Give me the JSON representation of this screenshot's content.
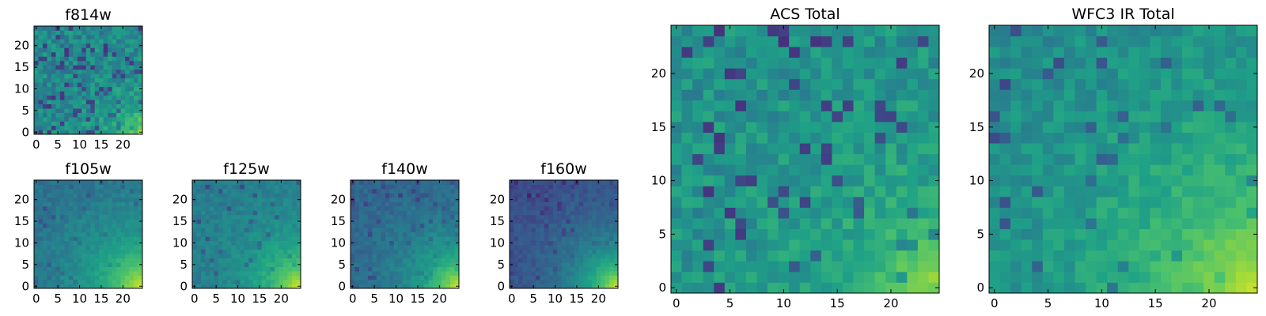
{
  "figure": {
    "background": "#ffffff"
  },
  "colormap": {
    "name": "viridis",
    "stops": [
      "#440154",
      "#46327e",
      "#365c8d",
      "#277f8e",
      "#1fa187",
      "#4ac16d",
      "#a0da39",
      "#fde725"
    ]
  },
  "chart_data": [
    {
      "type": "heatmap",
      "id": "f814w",
      "title": "f814w",
      "grid": [
        25,
        25
      ],
      "xlim": [
        -0.5,
        24.5
      ],
      "ylim": [
        -0.5,
        24.5
      ],
      "xticks": [
        0,
        5,
        10,
        15,
        20
      ],
      "yticks": [
        0,
        5,
        10,
        15,
        20
      ],
      "xtick_labels": [
        "0",
        "5",
        "10",
        "15",
        "20"
      ],
      "ytick_labels": [
        "0",
        "5",
        "10",
        "15",
        "20"
      ],
      "base_level": 0.46,
      "noise": 0.12,
      "dark_pixels": 0.1,
      "dark_level": 0.12,
      "gradient": {
        "level": 0.02,
        "bright": 1.0,
        "corner": [
          24,
          0
        ],
        "scale": 5.5,
        "peak": 0.75
      }
    },
    {
      "type": "heatmap",
      "id": "f105w",
      "title": "f105w",
      "grid": [
        25,
        25
      ],
      "xlim": [
        -0.5,
        24.5
      ],
      "ylim": [
        -0.5,
        24.5
      ],
      "xticks": [
        0,
        5,
        10,
        15,
        20
      ],
      "yticks": [
        0,
        5,
        10,
        15,
        20
      ],
      "xtick_labels": [
        "0",
        "5",
        "10",
        "15",
        "20"
      ],
      "ytick_labels": [
        "0",
        "5",
        "10",
        "15",
        "20"
      ],
      "base_level": 0.34,
      "noise": 0.06,
      "dark_pixels": 0.05,
      "dark_level": 0.18,
      "gradient": {
        "level": 0.45,
        "bright": 0.96,
        "corner": [
          24,
          0
        ],
        "scale": 11,
        "peak": 0.95
      }
    },
    {
      "type": "heatmap",
      "id": "f125w",
      "title": "f125w",
      "grid": [
        25,
        25
      ],
      "xlim": [
        -0.5,
        24.5
      ],
      "ylim": [
        -0.5,
        24.5
      ],
      "xticks": [
        0,
        5,
        10,
        15,
        20
      ],
      "yticks": [
        0,
        5,
        10,
        15,
        20
      ],
      "xtick_labels": [
        "0",
        "5",
        "10",
        "15",
        "20"
      ],
      "ytick_labels": [
        "0",
        "5",
        "10",
        "15",
        "20"
      ],
      "base_level": 0.4,
      "noise": 0.06,
      "dark_pixels": 0.04,
      "dark_level": 0.18,
      "gradient": {
        "level": 0.45,
        "bright": 0.96,
        "corner": [
          24,
          0
        ],
        "scale": 8.5,
        "peak": 0.95
      }
    },
    {
      "type": "heatmap",
      "id": "f140w",
      "title": "f140w",
      "grid": [
        25,
        25
      ],
      "xlim": [
        -0.5,
        24.5
      ],
      "ylim": [
        -0.5,
        24.5
      ],
      "xticks": [
        0,
        5,
        10,
        15,
        20
      ],
      "yticks": [
        0,
        5,
        10,
        15,
        20
      ],
      "xtick_labels": [
        "0",
        "5",
        "10",
        "15",
        "20"
      ],
      "ytick_labels": [
        "0",
        "5",
        "10",
        "15",
        "20"
      ],
      "base_level": 0.3,
      "noise": 0.06,
      "dark_pixels": 0.06,
      "dark_level": 0.12,
      "gradient": {
        "level": 0.42,
        "bright": 0.96,
        "corner": [
          24,
          0
        ],
        "scale": 9,
        "peak": 0.95
      }
    },
    {
      "type": "heatmap",
      "id": "f160w",
      "title": "f160w",
      "grid": [
        25,
        25
      ],
      "xlim": [
        -0.5,
        24.5
      ],
      "ylim": [
        -0.5,
        24.5
      ],
      "xticks": [
        0,
        5,
        10,
        15,
        20
      ],
      "yticks": [
        0,
        5,
        10,
        15,
        20
      ],
      "xtick_labels": [
        "0",
        "5",
        "10",
        "15",
        "20"
      ],
      "ytick_labels": [
        "0",
        "5",
        "10",
        "15",
        "20"
      ],
      "base_level": 0.2,
      "noise": 0.05,
      "dark_pixels": 0.06,
      "dark_level": 0.05,
      "gradient": {
        "level": 0.36,
        "bright": 0.96,
        "corner": [
          24,
          0
        ],
        "scale": 9.5,
        "peak": 0.95
      }
    },
    {
      "type": "heatmap",
      "id": "acs-total",
      "title": "ACS Total",
      "grid": [
        25,
        25
      ],
      "xlim": [
        -0.5,
        24.5
      ],
      "ylim": [
        -0.5,
        24.5
      ],
      "xticks": [
        0,
        5,
        10,
        15,
        20
      ],
      "yticks": [
        0,
        5,
        10,
        15,
        20
      ],
      "xtick_labels": [
        "0",
        "5",
        "10",
        "15",
        "20"
      ],
      "ytick_labels": [
        "0",
        "5",
        "10",
        "15",
        "20"
      ],
      "base_level": 0.5,
      "noise": 0.1,
      "dark_pixels": 0.07,
      "dark_level": 0.12,
      "gradient": {
        "level": 0.05,
        "bright": 1.0,
        "corner": [
          24,
          0
        ],
        "scale": 7,
        "peak": 0.72
      }
    },
    {
      "type": "heatmap",
      "id": "wfc3-ir-total",
      "title": "WFC3 IR Total",
      "grid": [
        25,
        25
      ],
      "xlim": [
        -0.5,
        24.5
      ],
      "ylim": [
        -0.5,
        24.5
      ],
      "xticks": [
        0,
        5,
        10,
        15,
        20
      ],
      "yticks": [
        0,
        5,
        10,
        15,
        20
      ],
      "xtick_labels": [
        "0",
        "5",
        "10",
        "15",
        "20"
      ],
      "ytick_labels": [
        "0",
        "5",
        "10",
        "15",
        "20"
      ],
      "base_level": 0.45,
      "noise": 0.09,
      "dark_pixels": 0.06,
      "dark_level": 0.14,
      "gradient": {
        "level": 0.35,
        "bright": 0.96,
        "corner": [
          24,
          0
        ],
        "scale": 12,
        "peak": 0.9
      }
    }
  ]
}
